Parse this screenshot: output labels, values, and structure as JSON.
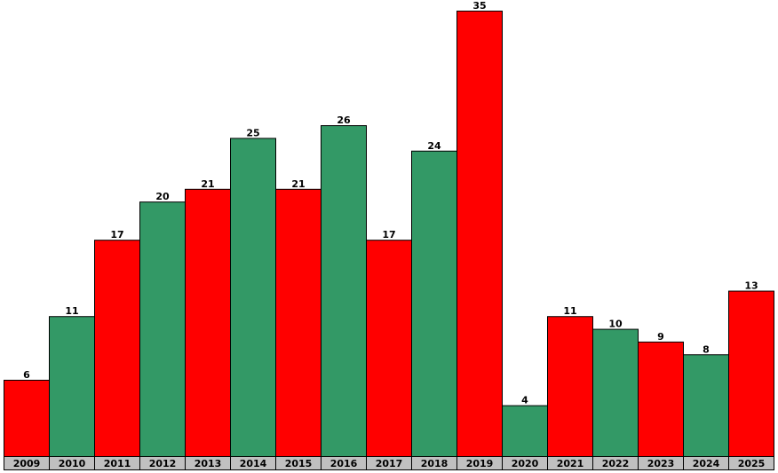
{
  "chart_data": {
    "type": "bar",
    "title": "",
    "xlabel": "",
    "ylabel": "",
    "categories": [
      "2009",
      "2010",
      "2011",
      "2012",
      "2013",
      "2014",
      "2015",
      "2016",
      "2017",
      "2018",
      "2019",
      "2020",
      "2021",
      "2022",
      "2023",
      "2024",
      "2025"
    ],
    "values": [
      6,
      11,
      17,
      20,
      21,
      25,
      21,
      26,
      17,
      24,
      35,
      4,
      11,
      10,
      9,
      8,
      13
    ],
    "ylim": [
      0,
      36
    ],
    "grid": false,
    "legend": "none",
    "show_value_labels": true,
    "colors": {
      "red_bar": "#ff0000",
      "green_bar": "#339966",
      "bar_outline": "#000000",
      "axis_label_bg": "#c0c0c0"
    },
    "bar_colors": [
      "red",
      "green",
      "red",
      "green",
      "red",
      "green",
      "red",
      "green",
      "red",
      "green",
      "red",
      "green",
      "red",
      "green",
      "red",
      "green",
      "red"
    ]
  }
}
